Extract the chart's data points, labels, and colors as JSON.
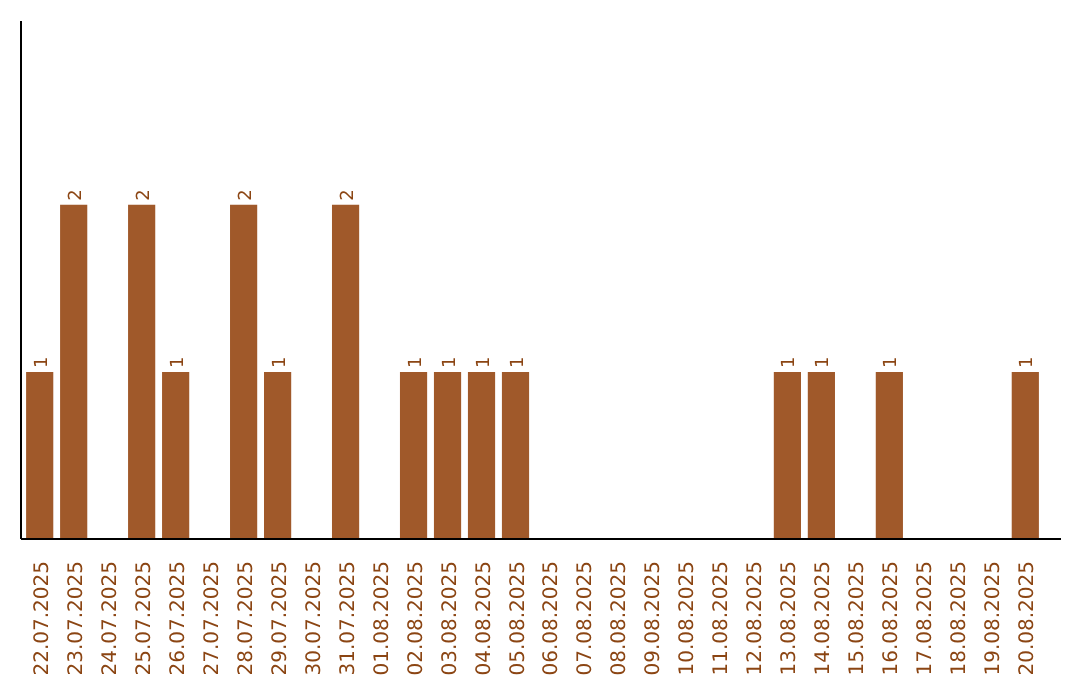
{
  "chart_data": {
    "type": "bar",
    "categories": [
      "22.07.2025",
      "23.07.2025",
      "24.07.2025",
      "25.07.2025",
      "26.07.2025",
      "27.07.2025",
      "28.07.2025",
      "29.07.2025",
      "30.07.2025",
      "31.07.2025",
      "01.08.2025",
      "02.08.2025",
      "03.08.2025",
      "04.08.2025",
      "05.08.2025",
      "06.08.2025",
      "07.08.2025",
      "08.08.2025",
      "09.08.2025",
      "10.08.2025",
      "11.08.2025",
      "12.08.2025",
      "13.08.2025",
      "14.08.2025",
      "15.08.2025",
      "16.08.2025",
      "17.08.2025",
      "18.08.2025",
      "19.08.2025",
      "20.08.2025"
    ],
    "values": [
      1,
      2,
      0,
      2,
      1,
      0,
      2,
      1,
      0,
      2,
      0,
      1,
      1,
      1,
      1,
      0,
      0,
      0,
      0,
      0,
      0,
      0,
      1,
      1,
      0,
      1,
      0,
      0,
      0,
      1
    ],
    "value_labels": [
      "1",
      "2",
      null,
      "2",
      "1",
      null,
      "2",
      "1",
      null,
      "2",
      null,
      "1",
      "1",
      "1",
      "1",
      null,
      null,
      null,
      null,
      null,
      null,
      null,
      "1",
      "1",
      null,
      "1",
      null,
      null,
      null,
      "1"
    ],
    "color": "#a0592a",
    "ylim": [
      0,
      3.1
    ],
    "tick_labels": "x",
    "grid": false
  }
}
